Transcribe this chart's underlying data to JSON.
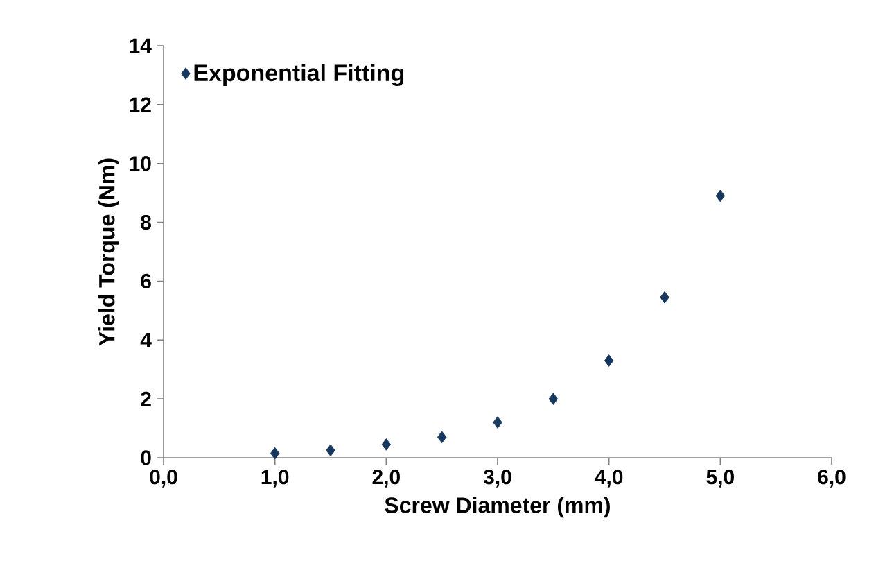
{
  "chart_data": {
    "type": "scatter",
    "xlabel": "Screw Diameter (mm)",
    "ylabel": "Yield Torque (Nm)",
    "x": [
      1.0,
      1.5,
      2.0,
      2.5,
      3.0,
      3.5,
      4.0,
      4.5,
      5.0
    ],
    "series": [
      {
        "name": "Exponential Fitting",
        "color": "#17375e",
        "values": [
          0.15,
          0.25,
          0.45,
          0.7,
          1.2,
          2.0,
          3.3,
          5.45,
          8.9
        ]
      }
    ],
    "xlim": [
      0,
      6
    ],
    "ylim": [
      0,
      14
    ],
    "xticks": [
      {
        "value": 0,
        "label": "0,0"
      },
      {
        "value": 1,
        "label": "1,0"
      },
      {
        "value": 2,
        "label": "2,0"
      },
      {
        "value": 3,
        "label": "3,0"
      },
      {
        "value": 4,
        "label": "4,0"
      },
      {
        "value": 5,
        "label": "5,0"
      },
      {
        "value": 6,
        "label": "6,0"
      }
    ],
    "yticks": [
      0,
      2,
      4,
      6,
      8,
      10,
      12,
      14
    ],
    "legend": "top left",
    "marker": "diamond",
    "grid": false
  }
}
